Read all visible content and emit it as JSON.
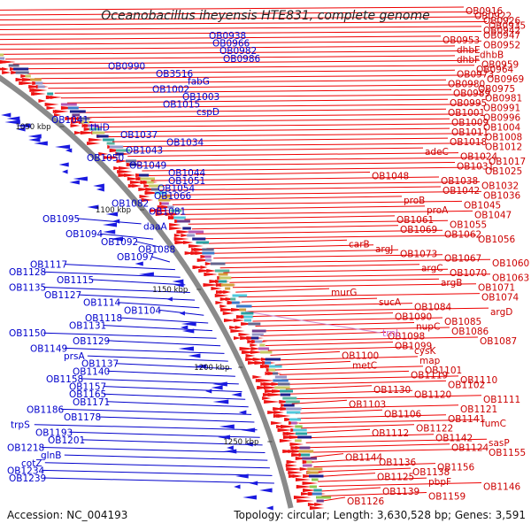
{
  "title": "Oceanobacillus iheyensis HTE831, complete genome",
  "footer": {
    "accession": "Accession: NC_004193",
    "summary": "Topology: circular; Length: 3,630,528 bp; Genes: 3,591"
  },
  "scale_labels": [
    "1000 kbp",
    "1050 kbp",
    "1100 kbp",
    "1150 kbp",
    "1200 kbp",
    "1250 kbp"
  ],
  "genes_left": [
    "OB0938",
    "OB0966",
    "OB0982",
    "OB0986",
    "OB0990",
    "OB3516",
    "fabG",
    "OB1002",
    "OB1003",
    "OB1015",
    "cspD",
    "OB1041",
    "thiD",
    "OB1037",
    "OB1034",
    "OB1043",
    "OB1050",
    "OB1049",
    "OB1044",
    "OB1051",
    "OB1054",
    "OB1066",
    "OB1082",
    "OB1081",
    "OB1095",
    "daaA",
    "OB1094",
    "OB1092",
    "OB1088",
    "OB1097",
    "OB1117",
    "OB1128",
    "OB1115",
    "OB1135",
    "OB1127",
    "OB1114",
    "OB1104",
    "OB1118",
    "OB1131",
    "OB1150",
    "OB1129",
    "OB1149",
    "prsA",
    "OB1137",
    "OB1140",
    "OB1158",
    "OB1157",
    "OB1165",
    "OB1171",
    "OB1186",
    "OB1178",
    "trpS",
    "OB1193",
    "OB1201",
    "OB1218",
    "glnB",
    "cotZ",
    "OB1234",
    "OB1239"
  ],
  "genes_right": [
    "OB0916",
    "OB0922",
    "OB0926",
    "OB0935",
    "OB0942",
    "OB0947",
    "OB0953",
    "OB0952",
    "dhbE",
    "dhbB",
    "dhbF",
    "OB0959",
    "OB0964",
    "OB0973",
    "OB0969",
    "OB0980",
    "OB0975",
    "OB0989",
    "OB0981",
    "OB0995",
    "OB0991",
    "OB1001",
    "OB0996",
    "OB1009",
    "OB1004",
    "OB1011",
    "OB1008",
    "OB1018",
    "OB1012",
    "adeC",
    "OB1024",
    "OB1017",
    "OB1031",
    "OB1025",
    "OB1048",
    "OB1038",
    "OB1032",
    "OB1042",
    "OB1036",
    "proB",
    "OB1045",
    "proA",
    "OB1047",
    "OB1061",
    "OB1055",
    "OB1069",
    "OB1062",
    "OB1056",
    "carB",
    "argJ",
    "OB1073",
    "OB1067",
    "OB1060",
    "argC",
    "OB1070",
    "OB1063",
    "argB",
    "OB1071",
    "murG",
    "OB1074",
    "sucA",
    "OB1084",
    "argD",
    "OB1090",
    "OB1085",
    "nupC",
    "OB1086",
    "OB1098",
    "OB1087",
    "OB1099",
    "cysK",
    "OB1100",
    "map",
    "metC",
    "OB1101",
    "OB1119",
    "OB1110",
    "OB1102",
    "OB1130",
    "OB1120",
    "OB1111",
    "OB1103",
    "OB1121",
    "OB1106",
    "OB1141",
    "fumC",
    "OB1122",
    "OB1112",
    "OB1142",
    "sasP",
    "OB1124",
    "OB1155",
    "OB1144",
    "OB1136",
    "OB1156",
    "OB1138",
    "OB1125",
    "pbpF",
    "OB1146",
    "OB1139",
    "OB1159",
    "OB1126"
  ],
  "genes_rna": [
    "trnL"
  ],
  "colors": {
    "left_gene": "#0000cc",
    "right_gene": "#cc0000",
    "rna_gene": "#cc66cc",
    "backbone": "#888888"
  }
}
